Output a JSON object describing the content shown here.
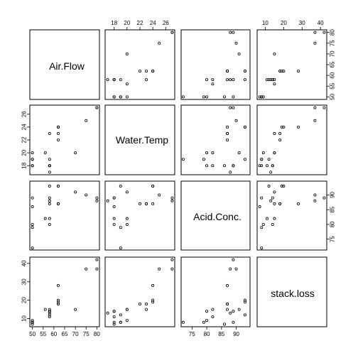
{
  "chart_data": {
    "type": "scatter",
    "variables": [
      {
        "name": "Air.Flow",
        "lim": [
          48.8,
          81.2
        ],
        "ticks": [
          50,
          55,
          60,
          65,
          70,
          75,
          80
        ]
      },
      {
        "name": "Water.Temp",
        "lim": [
          16.6,
          27.4
        ],
        "ticks": [
          18,
          20,
          22,
          24,
          26
        ]
      },
      {
        "name": "Acid.Conc.",
        "lim": [
          71.3,
          94.7
        ],
        "ticks": [
          75,
          80,
          85,
          90
        ]
      },
      {
        "name": "stack.loss",
        "lim": [
          5.6,
          43.4
        ],
        "ticks": [
          10,
          20,
          30,
          40
        ]
      }
    ],
    "observations": [
      [
        80,
        27,
        89,
        42
      ],
      [
        80,
        27,
        88,
        37
      ],
      [
        75,
        25,
        90,
        37
      ],
      [
        62,
        24,
        87,
        28
      ],
      [
        62,
        22,
        87,
        18
      ],
      [
        62,
        23,
        87,
        18
      ],
      [
        62,
        24,
        93,
        19
      ],
      [
        62,
        24,
        93,
        20
      ],
      [
        58,
        23,
        87,
        15
      ],
      [
        58,
        18,
        80,
        14
      ],
      [
        58,
        18,
        89,
        14
      ],
      [
        58,
        17,
        88,
        13
      ],
      [
        58,
        18,
        82,
        11
      ],
      [
        58,
        19,
        93,
        12
      ],
      [
        50,
        18,
        89,
        8
      ],
      [
        50,
        18,
        86,
        7
      ],
      [
        50,
        19,
        72,
        8
      ],
      [
        50,
        19,
        79,
        8
      ],
      [
        50,
        20,
        80,
        9
      ],
      [
        56,
        20,
        82,
        15
      ],
      [
        70,
        20,
        91,
        15
      ]
    ],
    "top_axis_variables": [
      1,
      3
    ],
    "bottom_axis_variables": [
      0,
      2
    ],
    "left_axis_variables": [
      1,
      3
    ],
    "right_axis_variables": [
      0,
      2
    ],
    "grid": false,
    "legend": "none"
  }
}
